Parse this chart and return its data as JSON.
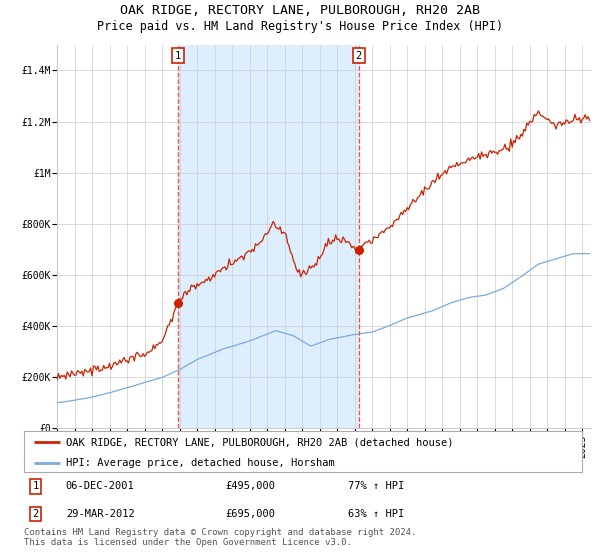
{
  "title": "OAK RIDGE, RECTORY LANE, PULBOROUGH, RH20 2AB",
  "subtitle": "Price paid vs. HM Land Registry's House Price Index (HPI)",
  "legend_line1": "OAK RIDGE, RECTORY LANE, PULBOROUGH, RH20 2AB (detached house)",
  "legend_line2": "HPI: Average price, detached house, Horsham",
  "annotation1_label": "1",
  "annotation1_date": "06-DEC-2001",
  "annotation1_price": "£495,000",
  "annotation1_hpi": "77% ↑ HPI",
  "annotation2_label": "2",
  "annotation2_date": "29-MAR-2012",
  "annotation2_price": "£695,000",
  "annotation2_hpi": "63% ↑ HPI",
  "footer": "Contains HM Land Registry data © Crown copyright and database right 2024.\nThis data is licensed under the Open Government Licence v3.0.",
  "hpi_color": "#7aaadd",
  "price_color": "#cc2200",
  "dot_color": "#cc2200",
  "background_color": "#ffffff",
  "shaded_region_color": "#ddeeff",
  "grid_color": "#cccccc",
  "dashed_line_color": "#ff4444",
  "ylim_min": 0,
  "ylim_max": 1500000,
  "yticks": [
    0,
    200000,
    400000,
    600000,
    800000,
    1000000,
    1200000,
    1400000
  ],
  "ytick_labels": [
    "£0",
    "£200K",
    "£400K",
    "£600K",
    "£800K",
    "£1M",
    "£1.2M",
    "£1.4M"
  ],
  "xstart_year": 1995,
  "xend_year": 2025,
  "sale1_year": 2001.92,
  "sale1_value": 495000,
  "sale2_year": 2012.24,
  "sale2_value": 695000,
  "title_fontsize": 9.5,
  "subtitle_fontsize": 8.5,
  "axis_fontsize": 7,
  "legend_fontsize": 7.5,
  "footer_fontsize": 6.5
}
